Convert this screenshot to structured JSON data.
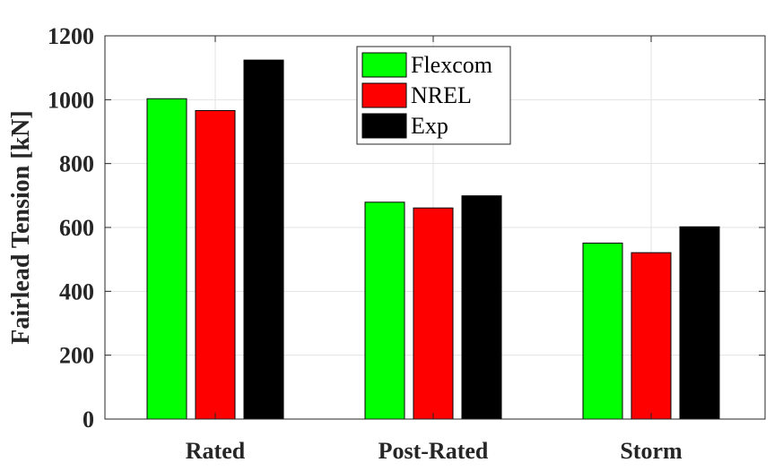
{
  "chart_data": {
    "type": "bar",
    "categories": [
      "Rated",
      "Post-Rated",
      "Storm"
    ],
    "series": [
      {
        "name": "Flexcom",
        "values": [
          1003,
          679,
          551
        ],
        "color": "#00ff00"
      },
      {
        "name": "NREL",
        "values": [
          966,
          661,
          521
        ],
        "color": "#ff0000"
      },
      {
        "name": "Exp",
        "values": [
          1124,
          699,
          602
        ],
        "color": "#000000"
      }
    ],
    "title": "",
    "xlabel": "",
    "ylabel": "Fairlead Tension [kN]",
    "ylim": [
      0,
      1200
    ],
    "yticks": [
      0,
      200,
      400,
      600,
      800,
      1000,
      1200
    ],
    "grid": true,
    "legend_position": "top-center"
  }
}
